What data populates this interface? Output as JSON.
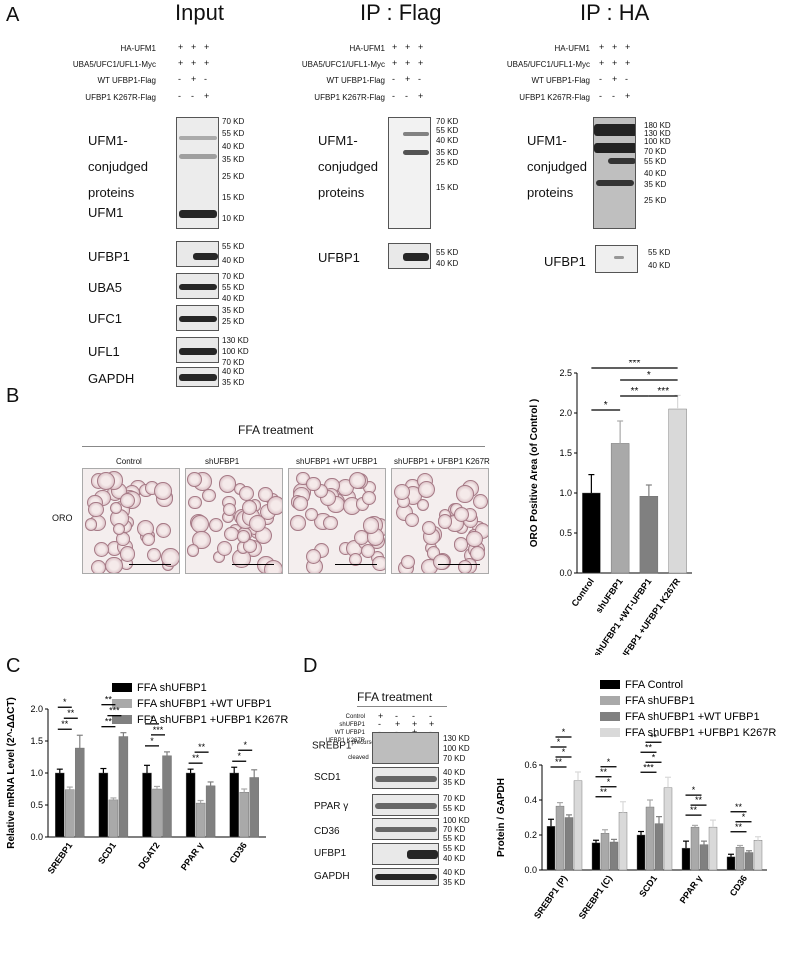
{
  "panels": {
    "A": {
      "letter": "A",
      "input": {
        "title": "Input",
        "rows": [
          "HA-UFM1",
          "UBA5/UFC1/UFL1-Myc",
          "WT UFBP1-Flag",
          "UFBP1 K267R-Flag"
        ],
        "signs": [
          [
            "+",
            "+",
            "+"
          ],
          [
            "+",
            "+",
            "+"
          ],
          [
            "-",
            "+",
            "-"
          ],
          [
            "-",
            "-",
            "+"
          ]
        ],
        "main_label": [
          "UFM1-",
          "conjudged",
          "proteins"
        ],
        "main_kd": [
          "70 KD",
          "55 KD",
          "40 KD",
          "35 KD",
          "25 KD",
          "15 KD",
          "10 KD"
        ],
        "ufm1_label": "UFM1",
        "blots": [
          {
            "label": "UFBP1",
            "kd": [
              "55 KD",
              "40 KD"
            ]
          },
          {
            "label": "UBA5",
            "kd": [
              "70 KD",
              "55 KD",
              "40 KD"
            ]
          },
          {
            "label": "UFC1",
            "kd": [
              "35 KD",
              "25 KD"
            ]
          },
          {
            "label": "UFL1",
            "kd": [
              "130 KD",
              "100 KD",
              "70 KD"
            ]
          },
          {
            "label": "GAPDH",
            "kd": [
              "40 KD",
              "35 KD"
            ]
          }
        ]
      },
      "ipflag": {
        "title": "IP : Flag",
        "rows": [
          "HA-UFM1",
          "UBA5/UFC1/UFL1-Myc",
          "WT UFBP1-Flag",
          "UFBP1 K267R-Flag"
        ],
        "signs": [
          [
            "+",
            "+",
            "+"
          ],
          [
            "+",
            "+",
            "+"
          ],
          [
            "-",
            "+",
            "-"
          ],
          [
            "-",
            "-",
            "+"
          ]
        ],
        "main_label": [
          "UFM1-",
          "conjudged",
          "proteins"
        ],
        "main_kd": [
          "70 KD",
          "55 KD",
          "40 KD",
          "35 KD",
          "25 KD",
          "15 KD"
        ],
        "blot": {
          "label": "UFBP1",
          "kd": [
            "55 KD",
            "40 KD"
          ]
        }
      },
      "ipha": {
        "title": "IP : HA",
        "rows": [
          "HA-UFM1",
          "UBA5/UFC1/UFL1-Myc",
          "WT UFBP1-Flag",
          "UFBP1 K267R-Flag"
        ],
        "signs": [
          [
            "+",
            "+",
            "+"
          ],
          [
            "+",
            "+",
            "+"
          ],
          [
            "-",
            "+",
            "-"
          ],
          [
            "-",
            "-",
            "+"
          ]
        ],
        "main_label": [
          "UFM1-",
          "conjudged",
          "proteins"
        ],
        "main_kd": [
          "180 KD",
          "130 KD",
          "100 KD",
          "70 KD",
          "55 KD",
          "40 KD",
          "35 KD",
          "25 KD"
        ],
        "blot": {
          "label": "UFBP1",
          "kd": [
            "55 KD",
            "40 KD"
          ]
        }
      }
    },
    "B": {
      "letter": "B",
      "treatment": "FFA treatment",
      "stain": "ORO",
      "conditions": [
        "Control",
        "shUFBP1",
        "shUFBP1 +WT UFBP1",
        "shUFBP1 + UFBP1 K267R"
      ]
    },
    "C": {
      "letter": "C"
    },
    "D": {
      "letter": "D",
      "treatment": "FFA treatment",
      "conditions": [
        "Control",
        "shUFBP1",
        "WT UFBP1",
        "UFBP1 K267R"
      ],
      "signs": [
        [
          "+",
          "-",
          "-",
          "-"
        ],
        [
          "-",
          "+",
          "+",
          "+"
        ],
        [
          "-",
          "-",
          "+",
          "-"
        ],
        [
          "-",
          "-",
          "-",
          "+"
        ]
      ],
      "blots": [
        {
          "label": "SREBP1",
          "sup": "precursor",
          "sub": "cleaved",
          "kd": [
            "130 KD",
            "100 KD",
            "70 KD"
          ]
        },
        {
          "label": "SCD1",
          "kd": [
            "40 KD",
            "35 KD"
          ]
        },
        {
          "label": "PPAR γ",
          "kd": [
            "70 KD",
            "55 KD"
          ]
        },
        {
          "label": "CD36",
          "kd": [
            "100 KD",
            "70 KD",
            "55 KD"
          ]
        },
        {
          "label": "UFBP1",
          "kd": [
            "55 KD",
            "40 KD"
          ]
        },
        {
          "label": "GAPDH",
          "kd": [
            "40 KD",
            "35 KD"
          ]
        }
      ]
    }
  },
  "chart_data": [
    {
      "id": "B",
      "type": "bar",
      "categories": [
        "Control",
        "shUFBP1",
        "shUFBP1 +WT-UFBP1",
        "shUFBP1 +UFBP1 K267R"
      ],
      "values": [
        1.0,
        1.62,
        0.96,
        2.05
      ],
      "errors": [
        0.23,
        0.28,
        0.14,
        0.17
      ],
      "colors": [
        "#000000",
        "#a9a9a9",
        "#808080",
        "#d9d9d9"
      ],
      "ylabel": "ORO Positive Area (of Control )",
      "ylim": [
        0,
        2.5
      ],
      "yticks": [
        "0.0",
        "0.5",
        "1.0",
        "1.5",
        "2.0",
        "2.5"
      ],
      "significance": [
        "*",
        "***",
        "*",
        "**",
        "***"
      ]
    },
    {
      "id": "C",
      "type": "bar",
      "categories": [
        "SREBP1",
        "SCD1",
        "DGAT2",
        "PPAR γ",
        "CD36"
      ],
      "series": [
        {
          "name": "FFA  shUFBP1",
          "values": [
            1.0,
            1.0,
            1.0,
            1.0,
            1.0
          ],
          "errors": [
            0.06,
            0.07,
            0.12,
            0.06,
            0.09
          ],
          "color": "#000000"
        },
        {
          "name": "FFA  shUFBP1 +WT UFBP1",
          "values": [
            0.74,
            0.58,
            0.75,
            0.53,
            0.7
          ],
          "errors": [
            0.04,
            0.03,
            0.04,
            0.04,
            0.05
          ],
          "color": "#a9a9a9"
        },
        {
          "name": "FFA  shUFBP1 +UFBP1 K267R",
          "values": [
            1.39,
            1.57,
            1.27,
            0.8,
            0.93
          ],
          "errors": [
            0.2,
            0.06,
            0.06,
            0.06,
            0.12
          ],
          "color": "#808080"
        }
      ],
      "ylabel": "Relative mRNA Level (2^-ΔΔCT)",
      "ylim": [
        0,
        2.0
      ],
      "yticks": [
        "0.0",
        "0.5",
        "1.0",
        "1.5",
        "2.0"
      ],
      "significance": [
        "**",
        "**",
        "*",
        "**",
        "***",
        "**",
        "*",
        "***",
        "*",
        "**",
        "**",
        "*",
        "*"
      ]
    },
    {
      "id": "D",
      "type": "bar",
      "categories": [
        "SREBP1 (P)",
        "SREBP1 (C)",
        "SCD1",
        "PPAR γ",
        "CD36"
      ],
      "series": [
        {
          "name": "FFA  Control",
          "values": [
            0.25,
            0.155,
            0.2,
            0.125,
            0.075
          ],
          "errors": [
            0.04,
            0.015,
            0.02,
            0.04,
            0.015
          ],
          "color": "#000000"
        },
        {
          "name": "FFA  shUFBP1",
          "values": [
            0.365,
            0.21,
            0.36,
            0.245,
            0.13
          ],
          "errors": [
            0.02,
            0.02,
            0.04,
            0.01,
            0.01
          ],
          "color": "#a9a9a9"
        },
        {
          "name": "FFA  shUFBP1 +WT UFBP1",
          "values": [
            0.3,
            0.16,
            0.265,
            0.145,
            0.1
          ],
          "errors": [
            0.015,
            0.015,
            0.04,
            0.02,
            0.01
          ],
          "color": "#808080"
        },
        {
          "name": "FFA  shUFBP1 +UFBP1 K267R",
          "values": [
            0.51,
            0.33,
            0.47,
            0.245,
            0.17
          ],
          "errors": [
            0.05,
            0.06,
            0.06,
            0.04,
            0.02
          ],
          "color": "#d9d9d9"
        }
      ],
      "ylabel": "Protein / GAPDH",
      "ylim": [
        0,
        0.6
      ],
      "yticks": [
        "0.0",
        "0.2",
        "0.4",
        "0.6"
      ],
      "significance": [
        "**",
        "*",
        "*",
        "*",
        "**",
        "*",
        "**",
        "*",
        "***",
        "*",
        "**",
        "**",
        "**",
        "**",
        "*",
        "**",
        "*",
        "**"
      ]
    }
  ]
}
